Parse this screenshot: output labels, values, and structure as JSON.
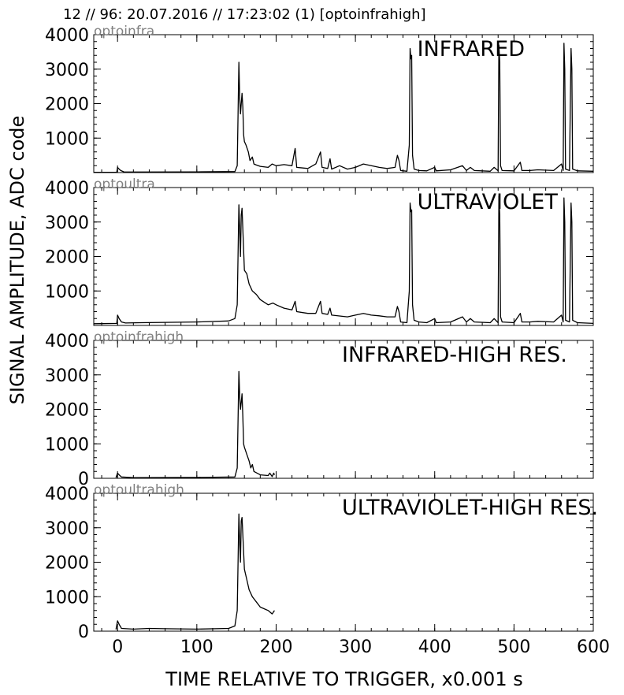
{
  "header": {
    "title": "12 // 96:   20.07.2016 // 17:23:02 (1)  [optoinfrahigh]"
  },
  "axes": {
    "ylabel": "SIGNAL AMPLITUDE,  ADC code",
    "xlabel": "TIME RELATIVE TO TRIGGER,   x0.001 s"
  },
  "chart_data": {
    "type": "line",
    "xlim": [
      -30,
      600
    ],
    "ylim": [
      0,
      4000
    ],
    "x_ticks": [
      0,
      100,
      200,
      300,
      400,
      500,
      600
    ],
    "panels": [
      {
        "channel": "optoinfra",
        "title": "INFRARED",
        "y_ticks": [
          1000,
          2000,
          3000,
          4000
        ],
        "points": [
          [
            -30,
            10
          ],
          [
            -1,
            10
          ],
          [
            0,
            150
          ],
          [
            2,
            100
          ],
          [
            4,
            60
          ],
          [
            8,
            20
          ],
          [
            30,
            15
          ],
          [
            100,
            20
          ],
          [
            148,
            30
          ],
          [
            151,
            200
          ],
          [
            153,
            3200
          ],
          [
            154,
            2200
          ],
          [
            155,
            1700
          ],
          [
            156,
            2000
          ],
          [
            157,
            2300
          ],
          [
            158,
            1900
          ],
          [
            159,
            1100
          ],
          [
            160,
            900
          ],
          [
            162,
            800
          ],
          [
            165,
            600
          ],
          [
            167,
            350
          ],
          [
            170,
            450
          ],
          [
            172,
            250
          ],
          [
            175,
            220
          ],
          [
            180,
            180
          ],
          [
            190,
            150
          ],
          [
            195,
            250
          ],
          [
            200,
            200
          ],
          [
            210,
            230
          ],
          [
            220,
            200
          ],
          [
            224,
            700
          ],
          [
            226,
            150
          ],
          [
            240,
            120
          ],
          [
            250,
            250
          ],
          [
            256,
            600
          ],
          [
            258,
            150
          ],
          [
            265,
            120
          ],
          [
            268,
            400
          ],
          [
            270,
            100
          ],
          [
            280,
            200
          ],
          [
            290,
            100
          ],
          [
            300,
            150
          ],
          [
            310,
            250
          ],
          [
            320,
            200
          ],
          [
            330,
            150
          ],
          [
            340,
            120
          ],
          [
            350,
            150
          ],
          [
            353,
            500
          ],
          [
            355,
            350
          ],
          [
            357,
            60
          ],
          [
            365,
            40
          ],
          [
            368,
            800
          ],
          [
            369,
            3600
          ],
          [
            370,
            3300
          ],
          [
            371,
            3400
          ],
          [
            372,
            500
          ],
          [
            374,
            100
          ],
          [
            380,
            60
          ],
          [
            390,
            50
          ],
          [
            400,
            150
          ],
          [
            402,
            50
          ],
          [
            420,
            80
          ],
          [
            435,
            200
          ],
          [
            440,
            60
          ],
          [
            445,
            150
          ],
          [
            450,
            60
          ],
          [
            470,
            40
          ],
          [
            475,
            150
          ],
          [
            480,
            50
          ],
          [
            481,
            3700
          ],
          [
            482,
            3200
          ],
          [
            483,
            200
          ],
          [
            485,
            60
          ],
          [
            500,
            50
          ],
          [
            508,
            300
          ],
          [
            510,
            60
          ],
          [
            520,
            60
          ],
          [
            530,
            80
          ],
          [
            550,
            60
          ],
          [
            560,
            250
          ],
          [
            562,
            60
          ],
          [
            563,
            3750
          ],
          [
            564,
            3000
          ],
          [
            565,
            100
          ],
          [
            570,
            60
          ],
          [
            572,
            3600
          ],
          [
            573,
            3000
          ],
          [
            574,
            100
          ],
          [
            580,
            50
          ],
          [
            600,
            40
          ]
        ]
      },
      {
        "channel": "optoultra",
        "title": "ULTRAVIOLET",
        "y_ticks": [
          1000,
          2000,
          3000,
          4000
        ],
        "points": [
          [
            -30,
            50
          ],
          [
            -1,
            60
          ],
          [
            0,
            300
          ],
          [
            2,
            200
          ],
          [
            5,
            100
          ],
          [
            10,
            70
          ],
          [
            30,
            80
          ],
          [
            60,
            90
          ],
          [
            100,
            100
          ],
          [
            140,
            130
          ],
          [
            148,
            200
          ],
          [
            151,
            600
          ],
          [
            153,
            3500
          ],
          [
            154,
            2800
          ],
          [
            155,
            2000
          ],
          [
            156,
            3200
          ],
          [
            157,
            3400
          ],
          [
            158,
            2800
          ],
          [
            159,
            2200
          ],
          [
            160,
            1600
          ],
          [
            163,
            1500
          ],
          [
            166,
            1200
          ],
          [
            170,
            1000
          ],
          [
            175,
            900
          ],
          [
            180,
            750
          ],
          [
            190,
            600
          ],
          [
            196,
            650
          ],
          [
            200,
            600
          ],
          [
            210,
            500
          ],
          [
            220,
            450
          ],
          [
            224,
            700
          ],
          [
            226,
            400
          ],
          [
            240,
            350
          ],
          [
            250,
            350
          ],
          [
            256,
            700
          ],
          [
            258,
            350
          ],
          [
            265,
            320
          ],
          [
            268,
            500
          ],
          [
            270,
            300
          ],
          [
            290,
            250
          ],
          [
            300,
            300
          ],
          [
            310,
            350
          ],
          [
            320,
            300
          ],
          [
            330,
            280
          ],
          [
            340,
            250
          ],
          [
            350,
            250
          ],
          [
            353,
            550
          ],
          [
            355,
            400
          ],
          [
            357,
            100
          ],
          [
            365,
            80
          ],
          [
            368,
            1000
          ],
          [
            369,
            3550
          ],
          [
            370,
            3300
          ],
          [
            371,
            3350
          ],
          [
            372,
            600
          ],
          [
            374,
            150
          ],
          [
            380,
            100
          ],
          [
            390,
            80
          ],
          [
            400,
            200
          ],
          [
            402,
            80
          ],
          [
            420,
            100
          ],
          [
            435,
            250
          ],
          [
            440,
            100
          ],
          [
            445,
            200
          ],
          [
            450,
            100
          ],
          [
            470,
            80
          ],
          [
            475,
            200
          ],
          [
            480,
            80
          ],
          [
            481,
            3750
          ],
          [
            482,
            3200
          ],
          [
            483,
            250
          ],
          [
            485,
            100
          ],
          [
            500,
            80
          ],
          [
            508,
            350
          ],
          [
            510,
            100
          ],
          [
            520,
            100
          ],
          [
            530,
            120
          ],
          [
            550,
            100
          ],
          [
            560,
            300
          ],
          [
            562,
            100
          ],
          [
            563,
            3700
          ],
          [
            564,
            3000
          ],
          [
            565,
            150
          ],
          [
            570,
            100
          ],
          [
            572,
            3550
          ],
          [
            573,
            3000
          ],
          [
            574,
            150
          ],
          [
            580,
            80
          ],
          [
            600,
            60
          ]
        ]
      },
      {
        "channel": "optoinfrahigh",
        "title": "INFRARED-HIGH RES.",
        "y_ticks": [
          0,
          1000,
          2000,
          3000,
          4000
        ],
        "points": [
          [
            -2,
            20
          ],
          [
            0,
            150
          ],
          [
            2,
            100
          ],
          [
            5,
            40
          ],
          [
            20,
            20
          ],
          [
            100,
            25
          ],
          [
            148,
            40
          ],
          [
            151,
            300
          ],
          [
            153,
            3100
          ],
          [
            154,
            2400
          ],
          [
            155,
            2000
          ],
          [
            156,
            2200
          ],
          [
            157,
            2450
          ],
          [
            158,
            1800
          ],
          [
            159,
            1000
          ],
          [
            160,
            900
          ],
          [
            163,
            700
          ],
          [
            166,
            500
          ],
          [
            168,
            300
          ],
          [
            170,
            400
          ],
          [
            172,
            200
          ],
          [
            180,
            100
          ],
          [
            190,
            80
          ],
          [
            192,
            150
          ],
          [
            195,
            50
          ],
          [
            197,
            150
          ],
          [
            198,
            100
          ]
        ]
      },
      {
        "channel": "optoultrahigh",
        "title": "ULTRAVIOLET-HIGH RES.",
        "y_ticks": [
          0,
          1000,
          2000,
          3000,
          4000
        ],
        "points": [
          [
            -2,
            50
          ],
          [
            0,
            300
          ],
          [
            2,
            200
          ],
          [
            5,
            80
          ],
          [
            20,
            60
          ],
          [
            40,
            80
          ],
          [
            60,
            70
          ],
          [
            100,
            60
          ],
          [
            140,
            80
          ],
          [
            148,
            150
          ],
          [
            151,
            600
          ],
          [
            153,
            3400
          ],
          [
            154,
            2600
          ],
          [
            155,
            2000
          ],
          [
            156,
            3200
          ],
          [
            157,
            3300
          ],
          [
            158,
            2800
          ],
          [
            159,
            2300
          ],
          [
            160,
            1800
          ],
          [
            163,
            1500
          ],
          [
            166,
            1200
          ],
          [
            170,
            1000
          ],
          [
            175,
            850
          ],
          [
            180,
            700
          ],
          [
            185,
            650
          ],
          [
            190,
            600
          ],
          [
            195,
            500
          ],
          [
            198,
            600
          ]
        ]
      }
    ]
  }
}
